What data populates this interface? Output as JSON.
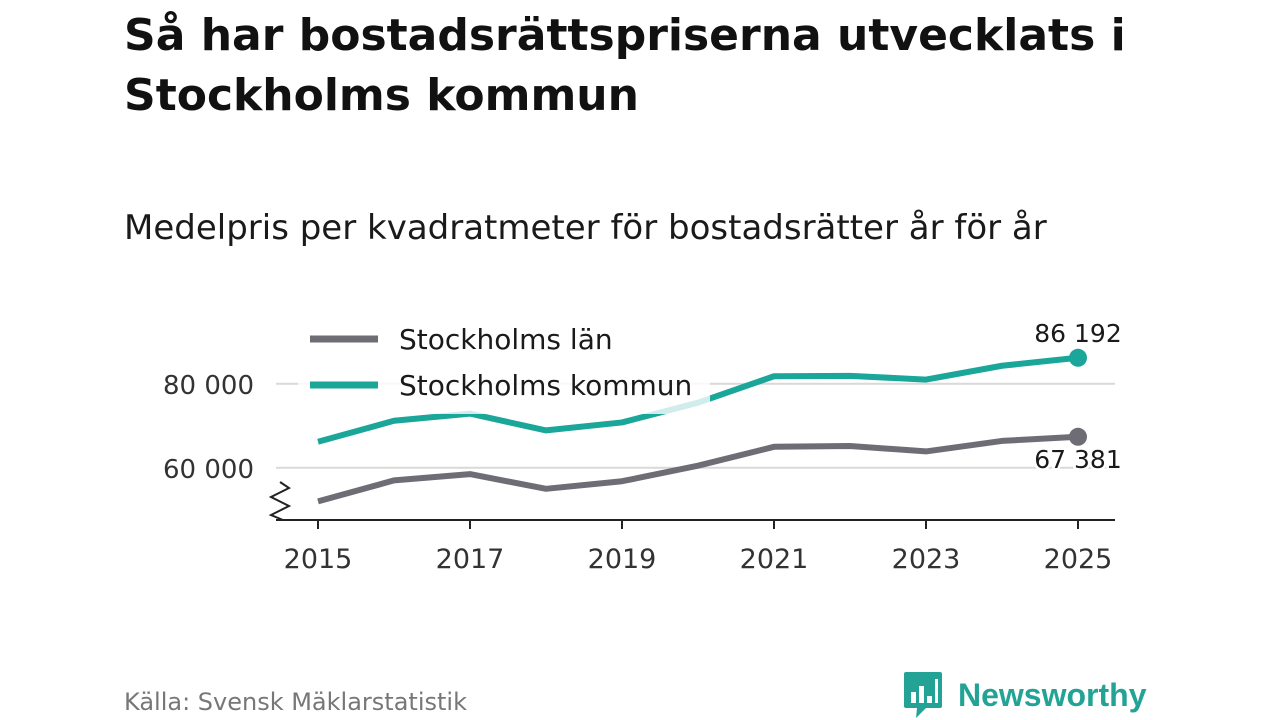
{
  "title": "Så har bostadsrättspriserna utvecklats i Stockholms kommun",
  "subtitle": "Medelpris per kvadratmeter för bostadsrätter år för år",
  "source": "Källa: Svensk Mäklarstatistik",
  "brand": {
    "name": "Newsworthy",
    "color": "#23a395"
  },
  "chart_data": {
    "type": "line",
    "title": "Medelpris per kvadratmeter för bostadsrätter år för år",
    "xlabel": "",
    "ylabel": "",
    "x": [
      2015,
      2016,
      2017,
      2018,
      2019,
      2020,
      2021,
      2022,
      2023,
      2024,
      2025
    ],
    "x_ticks": [
      "2015",
      "2017",
      "2019",
      "2021",
      "2023",
      "2025"
    ],
    "y_ticks": [
      60000,
      80000
    ],
    "y_tick_labels": [
      "60 000",
      "80 000"
    ],
    "ylim": [
      44000,
      94000
    ],
    "axis_break": true,
    "legend_position": "top-left",
    "series": [
      {
        "name": "Stockholms län",
        "color": "#6e6d75",
        "values": [
          52000,
          57000,
          58500,
          55000,
          56800,
          60500,
          65000,
          65200,
          63900,
          66400,
          67381
        ],
        "end_label": "67 381"
      },
      {
        "name": "Stockholms kommun",
        "color": "#1aa699",
        "values": [
          66200,
          71200,
          72900,
          68900,
          70800,
          75500,
          81800,
          81900,
          81000,
          84300,
          86192
        ],
        "end_label": "86 192"
      }
    ]
  }
}
